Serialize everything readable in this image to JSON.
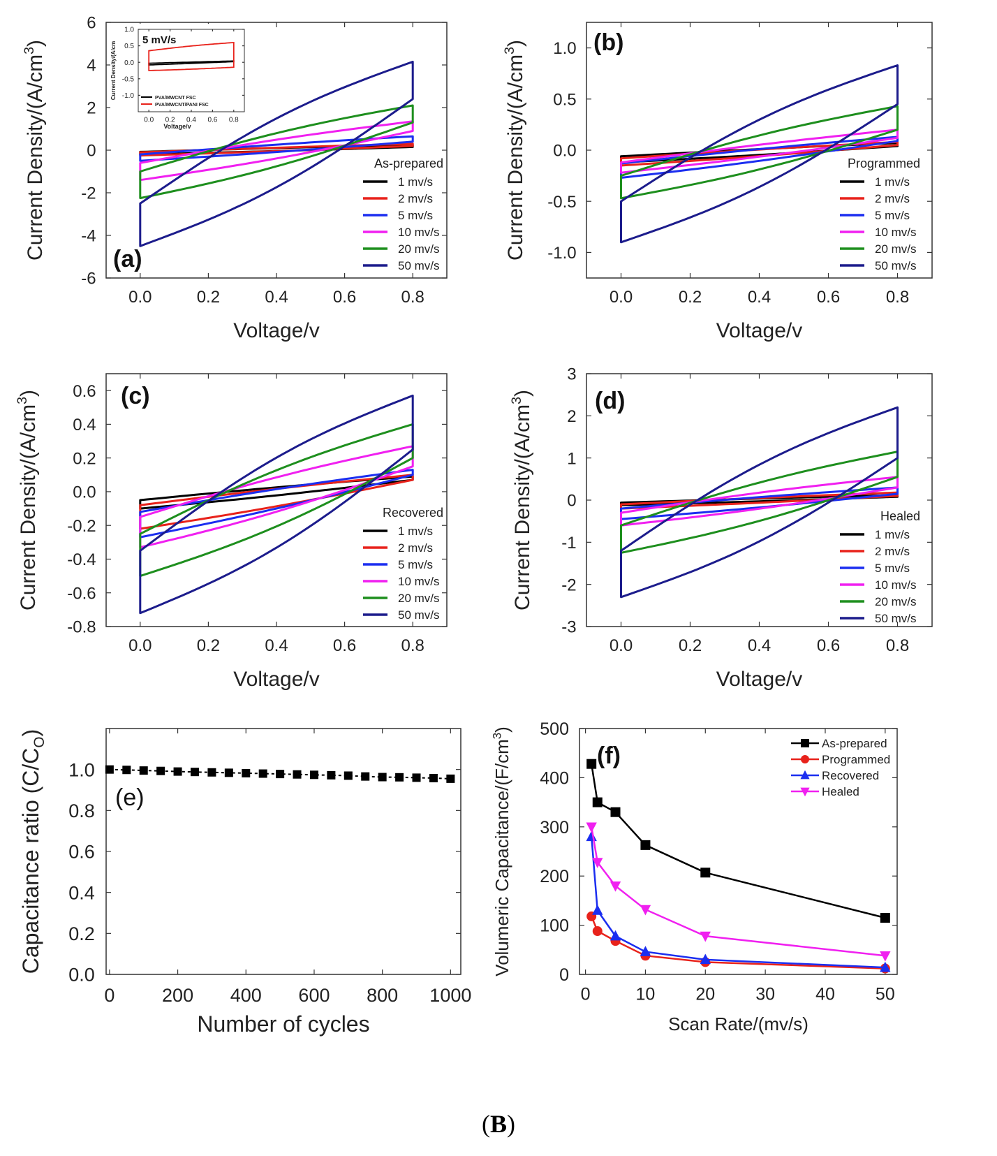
{
  "caption": {
    "open": "(",
    "letter": "B",
    "close": ")"
  },
  "legend_labels": [
    "1 mv/s",
    "2 mv/s",
    "5 mv/s",
    "10 mv/s",
    "20 mv/s",
    "50 mv/s"
  ],
  "chart_data": [
    {
      "id": "a",
      "type": "line",
      "panel_label": "(a)",
      "legend_title": "As-prepared",
      "xlabel": "Voltage/v",
      "ylabel": "Current Density/(A/cm",
      "ylabel_sup": "3",
      "ylabel_end": ")",
      "xlim": [
        -0.1,
        0.9
      ],
      "ylim": [
        -6,
        6
      ],
      "xticks": [
        0.0,
        0.2,
        0.4,
        0.6,
        0.8
      ],
      "xtick_labels": [
        "0.0",
        "0.2",
        "0.4",
        "0.6",
        "0.8"
      ],
      "yticks": [
        -6,
        -4,
        -2,
        0,
        2,
        4,
        6
      ],
      "ytick_labels": [
        "-6",
        "-4",
        "-2",
        "0",
        "2",
        "4",
        "6"
      ],
      "series": [
        {
          "name": "1 mv/s",
          "color": "#000000",
          "i_start_lower": -0.2,
          "i_start_upper": -0.08,
          "i_end_upper": 0.25,
          "i_end_lower": 0.15,
          "shape": 0.1
        },
        {
          "name": "2 mv/s",
          "color": "#e8221b",
          "i_start_lower": -0.25,
          "i_start_upper": -0.1,
          "i_end_upper": 0.3,
          "i_end_lower": 0.2,
          "shape": 0.1
        },
        {
          "name": "5 mv/s",
          "color": "#1b2ef0",
          "i_start_lower": -0.5,
          "i_start_upper": -0.2,
          "i_end_upper": 0.65,
          "i_end_lower": 0.4,
          "shape": 0.1
        },
        {
          "name": "10 mv/s",
          "color": "#f020f0",
          "i_start_lower": -1.4,
          "i_start_upper": -0.6,
          "i_end_upper": 1.35,
          "i_end_lower": 0.9,
          "shape": 0.15
        },
        {
          "name": "20 mv/s",
          "color": "#1e8f1e",
          "i_start_lower": -2.25,
          "i_start_upper": -1.0,
          "i_end_upper": 2.1,
          "i_end_lower": 1.3,
          "shape": 0.2
        },
        {
          "name": "50 mv/s",
          "color": "#1c1c8c",
          "i_start_lower": -4.5,
          "i_start_upper": -2.5,
          "i_end_upper": 4.15,
          "i_end_lower": 2.4,
          "shape": 0.25
        }
      ],
      "inset": {
        "title": "5 mV/s",
        "xlabel": "Voltage/v",
        "ylabel": "Current Density/(A/cm",
        "xlim": [
          -0.1,
          0.9
        ],
        "ylim": [
          -1.5,
          1.0
        ],
        "xticks": [
          0.0,
          0.2,
          0.4,
          0.6,
          0.8
        ],
        "xtick_labels": [
          "0.0",
          "0.2",
          "0.4",
          "0.6",
          "0.8"
        ],
        "yticks": [
          -1.0,
          -0.5,
          0.0,
          0.5,
          1.0
        ],
        "ytick_labels": [
          "-1.0",
          "-0.5",
          "0.0",
          "0.5",
          "1.0"
        ],
        "series": [
          {
            "name": "PVA/MWCNT FSC",
            "color": "#000000",
            "i_start_lower": -0.08,
            "i_start_upper": -0.03,
            "i_end_upper": 0.04,
            "i_end_lower": 0.02,
            "shape": 0.05
          },
          {
            "name": "PVA/MWCNT/PANI FSC",
            "color": "#e8221b",
            "i_start_lower": -0.25,
            "i_start_upper": 0.35,
            "i_end_upper": 0.6,
            "i_end_lower": -0.15,
            "shape": 0.2
          }
        ]
      }
    },
    {
      "id": "b",
      "type": "line",
      "panel_label": "(b)",
      "legend_title": "Programmed",
      "xlabel": "Voltage/v",
      "ylabel": "Current Density/(A/cm",
      "ylabel_sup": "3",
      "ylabel_end": ")",
      "xlim": [
        -0.1,
        0.9
      ],
      "ylim": [
        -1.25,
        1.25
      ],
      "xticks": [
        0.0,
        0.2,
        0.4,
        0.6,
        0.8
      ],
      "xtick_labels": [
        "0.0",
        "0.2",
        "0.4",
        "0.6",
        "0.8"
      ],
      "yticks": [
        -1.0,
        -0.5,
        0.0,
        0.5,
        1.0
      ],
      "ytick_labels": [
        "-1.0",
        "-0.5",
        "0.0",
        "0.5",
        "1.0"
      ],
      "series": [
        {
          "name": "1 mv/s",
          "color": "#000000",
          "i_start_lower": -0.12,
          "i_start_upper": -0.06,
          "i_end_upper": 0.07,
          "i_end_lower": 0.04,
          "shape": 0.1
        },
        {
          "name": "2 mv/s",
          "color": "#e8221b",
          "i_start_lower": -0.15,
          "i_start_upper": -0.08,
          "i_end_upper": 0.08,
          "i_end_lower": 0.05,
          "shape": 0.1
        },
        {
          "name": "5 mv/s",
          "color": "#1b2ef0",
          "i_start_lower": -0.27,
          "i_start_upper": -0.13,
          "i_end_upper": 0.13,
          "i_end_lower": 0.09,
          "shape": 0.1
        },
        {
          "name": "10 mv/s",
          "color": "#f020f0",
          "i_start_lower": -0.22,
          "i_start_upper": -0.12,
          "i_end_upper": 0.2,
          "i_end_lower": 0.12,
          "shape": 0.1
        },
        {
          "name": "20 mv/s",
          "color": "#1e8f1e",
          "i_start_lower": -0.47,
          "i_start_upper": -0.25,
          "i_end_upper": 0.43,
          "i_end_lower": 0.2,
          "shape": 0.2
        },
        {
          "name": "50 mv/s",
          "color": "#1c1c8c",
          "i_start_lower": -0.9,
          "i_start_upper": -0.5,
          "i_end_upper": 0.83,
          "i_end_lower": 0.45,
          "shape": 0.25
        }
      ]
    },
    {
      "id": "c",
      "type": "line",
      "panel_label": "(c)",
      "legend_title": "Recovered",
      "xlabel": "Voltage/v",
      "ylabel": "Current Density/(A/cm",
      "ylabel_sup": "3",
      "ylabel_end": ")",
      "xlim": [
        -0.1,
        0.9
      ],
      "ylim": [
        -0.8,
        0.7
      ],
      "xticks": [
        0.0,
        0.2,
        0.4,
        0.6,
        0.8
      ],
      "xtick_labels": [
        "0.0",
        "0.2",
        "0.4",
        "0.6",
        "0.8"
      ],
      "yticks": [
        -0.8,
        -0.6,
        -0.4,
        -0.2,
        0.0,
        0.2,
        0.4,
        0.6
      ],
      "ytick_labels": [
        "-0.8",
        "-0.6",
        "-0.4",
        "-0.2",
        "0.0",
        "0.2",
        "0.4",
        "0.6"
      ],
      "series": [
        {
          "name": "1 mv/s",
          "color": "#000000",
          "i_start_lower": -0.1,
          "i_start_upper": -0.05,
          "i_end_upper": 0.09,
          "i_end_lower": 0.07,
          "shape": 0.1
        },
        {
          "name": "2 mv/s",
          "color": "#e8221b",
          "i_start_lower": -0.22,
          "i_start_upper": -0.08,
          "i_end_upper": 0.1,
          "i_end_lower": 0.07,
          "shape": 0.1
        },
        {
          "name": "5 mv/s",
          "color": "#1b2ef0",
          "i_start_lower": -0.27,
          "i_start_upper": -0.12,
          "i_end_upper": 0.13,
          "i_end_lower": 0.1,
          "shape": 0.1
        },
        {
          "name": "10 mv/s",
          "color": "#f020f0",
          "i_start_lower": -0.33,
          "i_start_upper": -0.15,
          "i_end_upper": 0.27,
          "i_end_lower": 0.15,
          "shape": 0.15
        },
        {
          "name": "20 mv/s",
          "color": "#1e8f1e",
          "i_start_lower": -0.5,
          "i_start_upper": -0.25,
          "i_end_upper": 0.4,
          "i_end_lower": 0.2,
          "shape": 0.2
        },
        {
          "name": "50 mv/s",
          "color": "#1c1c8c",
          "i_start_lower": -0.72,
          "i_start_upper": -0.35,
          "i_end_upper": 0.57,
          "i_end_lower": 0.25,
          "shape": 0.25
        }
      ]
    },
    {
      "id": "d",
      "type": "line",
      "panel_label": "(d)",
      "legend_title": "Healed",
      "xlabel": "Voltage/v",
      "ylabel": "Current Density/(A/cm",
      "ylabel_sup": "3",
      "ylabel_end": ")",
      "xlim": [
        -0.1,
        0.9
      ],
      "ylim": [
        -3,
        3
      ],
      "xticks": [
        0.0,
        0.2,
        0.4,
        0.6,
        0.8
      ],
      "xtick_labels": [
        "0.0",
        "0.2",
        "0.4",
        "0.6",
        "0.8"
      ],
      "yticks": [
        -3,
        -2,
        -1,
        0,
        1,
        2,
        3
      ],
      "ytick_labels": [
        "-3",
        "-2",
        "-1",
        "0",
        "1",
        "2",
        "3"
      ],
      "series": [
        {
          "name": "1 mv/s",
          "color": "#000000",
          "i_start_lower": -0.12,
          "i_start_upper": -0.06,
          "i_end_upper": 0.12,
          "i_end_lower": 0.08,
          "shape": 0.1
        },
        {
          "name": "2 mv/s",
          "color": "#e8221b",
          "i_start_lower": -0.2,
          "i_start_upper": -0.1,
          "i_end_upper": 0.18,
          "i_end_lower": 0.1,
          "shape": 0.1
        },
        {
          "name": "5 mv/s",
          "color": "#1b2ef0",
          "i_start_lower": -0.45,
          "i_start_upper": -0.2,
          "i_end_upper": 0.3,
          "i_end_lower": 0.15,
          "shape": 0.1
        },
        {
          "name": "10 mv/s",
          "color": "#f020f0",
          "i_start_lower": -0.6,
          "i_start_upper": -0.3,
          "i_end_upper": 0.55,
          "i_end_lower": 0.3,
          "shape": 0.15
        },
        {
          "name": "20 mv/s",
          "color": "#1e8f1e",
          "i_start_lower": -1.25,
          "i_start_upper": -0.6,
          "i_end_upper": 1.15,
          "i_end_lower": 0.55,
          "shape": 0.2
        },
        {
          "name": "50 mv/s",
          "color": "#1c1c8c",
          "i_start_lower": -2.3,
          "i_start_upper": -1.2,
          "i_end_upper": 2.2,
          "i_end_lower": 1.0,
          "shape": 0.25
        }
      ]
    },
    {
      "id": "e",
      "type": "scatter",
      "panel_label": "(e)",
      "xlabel": "Number of cycles",
      "ylabel": "Capacitance ratio (C/C",
      "ylabel_sub": "O",
      "ylabel_end": ")",
      "xlim": [
        -10,
        1030
      ],
      "ylim": [
        0,
        1.2
      ],
      "xticks": [
        0,
        200,
        400,
        600,
        800,
        1000
      ],
      "xtick_labels": [
        "0",
        "200",
        "400",
        "600",
        "800",
        "1000"
      ],
      "yticks": [
        0.0,
        0.2,
        0.4,
        0.6,
        0.8,
        1.0
      ],
      "ytick_labels": [
        "0.0",
        "0.2",
        "0.4",
        "0.6",
        "0.8",
        "1.0"
      ],
      "color": "#000000",
      "x": [
        0,
        50,
        100,
        150,
        200,
        250,
        300,
        350,
        400,
        450,
        500,
        550,
        600,
        650,
        700,
        750,
        800,
        850,
        900,
        950,
        1000
      ],
      "y": [
        1.0,
        0.998,
        0.995,
        0.993,
        0.99,
        0.988,
        0.986,
        0.984,
        0.982,
        0.98,
        0.978,
        0.976,
        0.974,
        0.972,
        0.97,
        0.966,
        0.963,
        0.962,
        0.96,
        0.958,
        0.955
      ]
    },
    {
      "id": "f",
      "type": "line",
      "panel_label": "(f)",
      "xlabel": "Scan Rate/(mv/s)",
      "ylabel": "Volumeric Capacitance/(F/cm",
      "ylabel_sup": "3",
      "ylabel_end": ")",
      "xlim": [
        -1,
        52
      ],
      "ylim": [
        0,
        500
      ],
      "xticks": [
        0,
        10,
        20,
        30,
        40,
        50
      ],
      "xtick_labels": [
        "0",
        "10",
        "20",
        "30",
        "40",
        "50"
      ],
      "yticks": [
        0,
        100,
        200,
        300,
        400,
        500
      ],
      "ytick_labels": [
        "0",
        "100",
        "200",
        "300",
        "400",
        "500"
      ],
      "x": [
        1,
        2,
        5,
        10,
        20,
        50
      ],
      "series": [
        {
          "name": "As-prepared",
          "color": "#000000",
          "marker": "square",
          "values": [
            428,
            350,
            330,
            263,
            207,
            115
          ]
        },
        {
          "name": "Programmed",
          "color": "#e8221b",
          "marker": "circle",
          "values": [
            118,
            88,
            68,
            38,
            25,
            12
          ]
        },
        {
          "name": "Recovered",
          "color": "#1b2ef0",
          "marker": "triangle-up",
          "values": [
            280,
            130,
            78,
            46,
            30,
            14
          ]
        },
        {
          "name": "Healed",
          "color": "#f020f0",
          "marker": "triangle-down",
          "values": [
            300,
            228,
            180,
            132,
            78,
            38
          ]
        }
      ]
    }
  ]
}
